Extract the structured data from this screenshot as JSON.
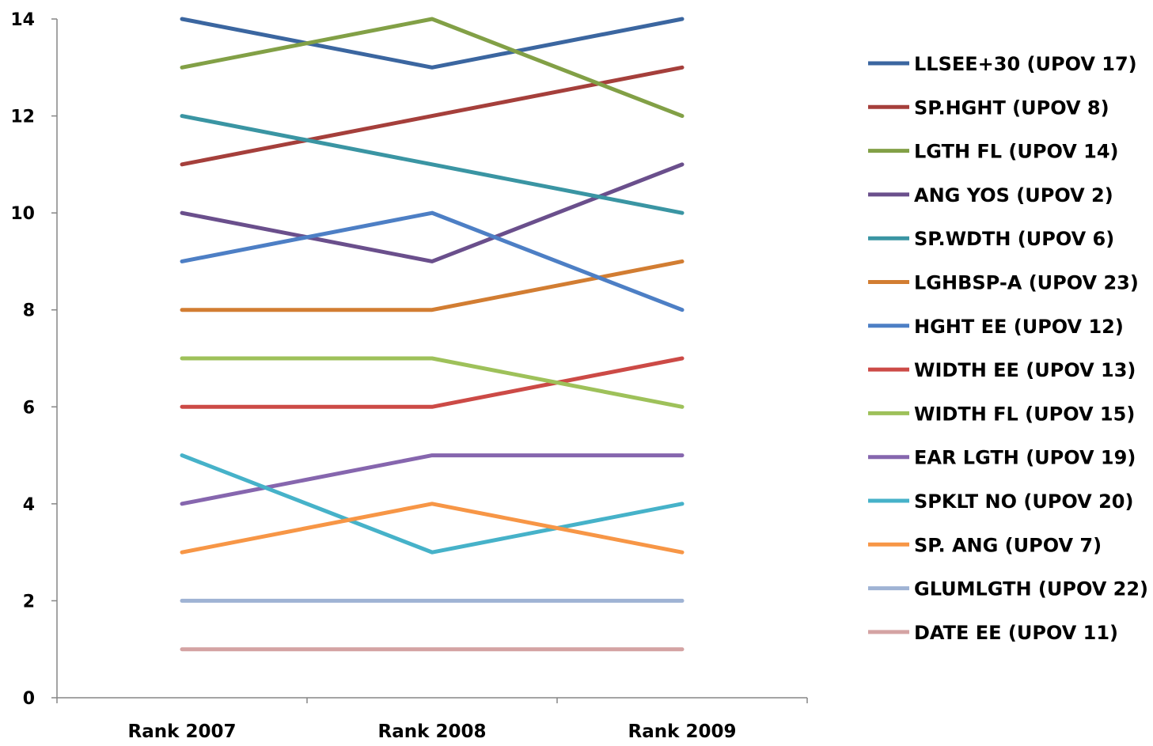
{
  "chart_data": {
    "type": "line",
    "title": "",
    "xlabel": "",
    "ylabel": "",
    "categories": [
      "Rank 2007",
      "Rank 2008",
      "Rank 2009"
    ],
    "ylim": [
      0,
      14
    ],
    "yticks": [
      0,
      2,
      4,
      6,
      8,
      10,
      12,
      14
    ],
    "grid": false,
    "legend": "right",
    "series": [
      {
        "name": "LLSEE+30 (UPOV 17)",
        "values": [
          14,
          13,
          14
        ],
        "color": "#3b66a0"
      },
      {
        "name": "SP.HGHT (UPOV 8)",
        "values": [
          11,
          12,
          13
        ],
        "color": "#a53f3b"
      },
      {
        "name": "LGTH FL (UPOV 14)",
        "values": [
          13,
          14,
          12
        ],
        "color": "#82a046"
      },
      {
        "name": "ANG YOS (UPOV 2)",
        "values": [
          10,
          9,
          11
        ],
        "color": "#6a4f8c"
      },
      {
        "name": "SP.WDTH (UPOV 6)",
        "values": [
          12,
          11,
          10
        ],
        "color": "#3a95a3"
      },
      {
        "name": "LGHBSP-A (UPOV 23)",
        "values": [
          8,
          8,
          9
        ],
        "color": "#d27d32"
      },
      {
        "name": "HGHT EE (UPOV 12)",
        "values": [
          9,
          10,
          8
        ],
        "color": "#4d7fc5"
      },
      {
        "name": "WIDTH EE (UPOV 13)",
        "values": [
          6,
          6,
          7
        ],
        "color": "#cc4a46"
      },
      {
        "name": "WIDTH FL (UPOV 15)",
        "values": [
          7,
          7,
          6
        ],
        "color": "#9ec15a"
      },
      {
        "name": "EAR LGTH (UPOV 19)",
        "values": [
          4,
          5,
          5
        ],
        "color": "#8666ae"
      },
      {
        "name": "SPKLT NO (UPOV 20)",
        "values": [
          5,
          3,
          4
        ],
        "color": "#46b2c9"
      },
      {
        "name": "SP. ANG (UPOV 7)",
        "values": [
          3,
          4,
          3
        ],
        "color": "#f79646"
      },
      {
        "name": "GLUMLGTH (UPOV 22)",
        "values": [
          2,
          2,
          2
        ],
        "color": "#9fb3d4"
      },
      {
        "name": "DATE EE (UPOV 11)",
        "values": [
          1,
          1,
          1
        ],
        "color": "#d4a3a3"
      }
    ]
  }
}
